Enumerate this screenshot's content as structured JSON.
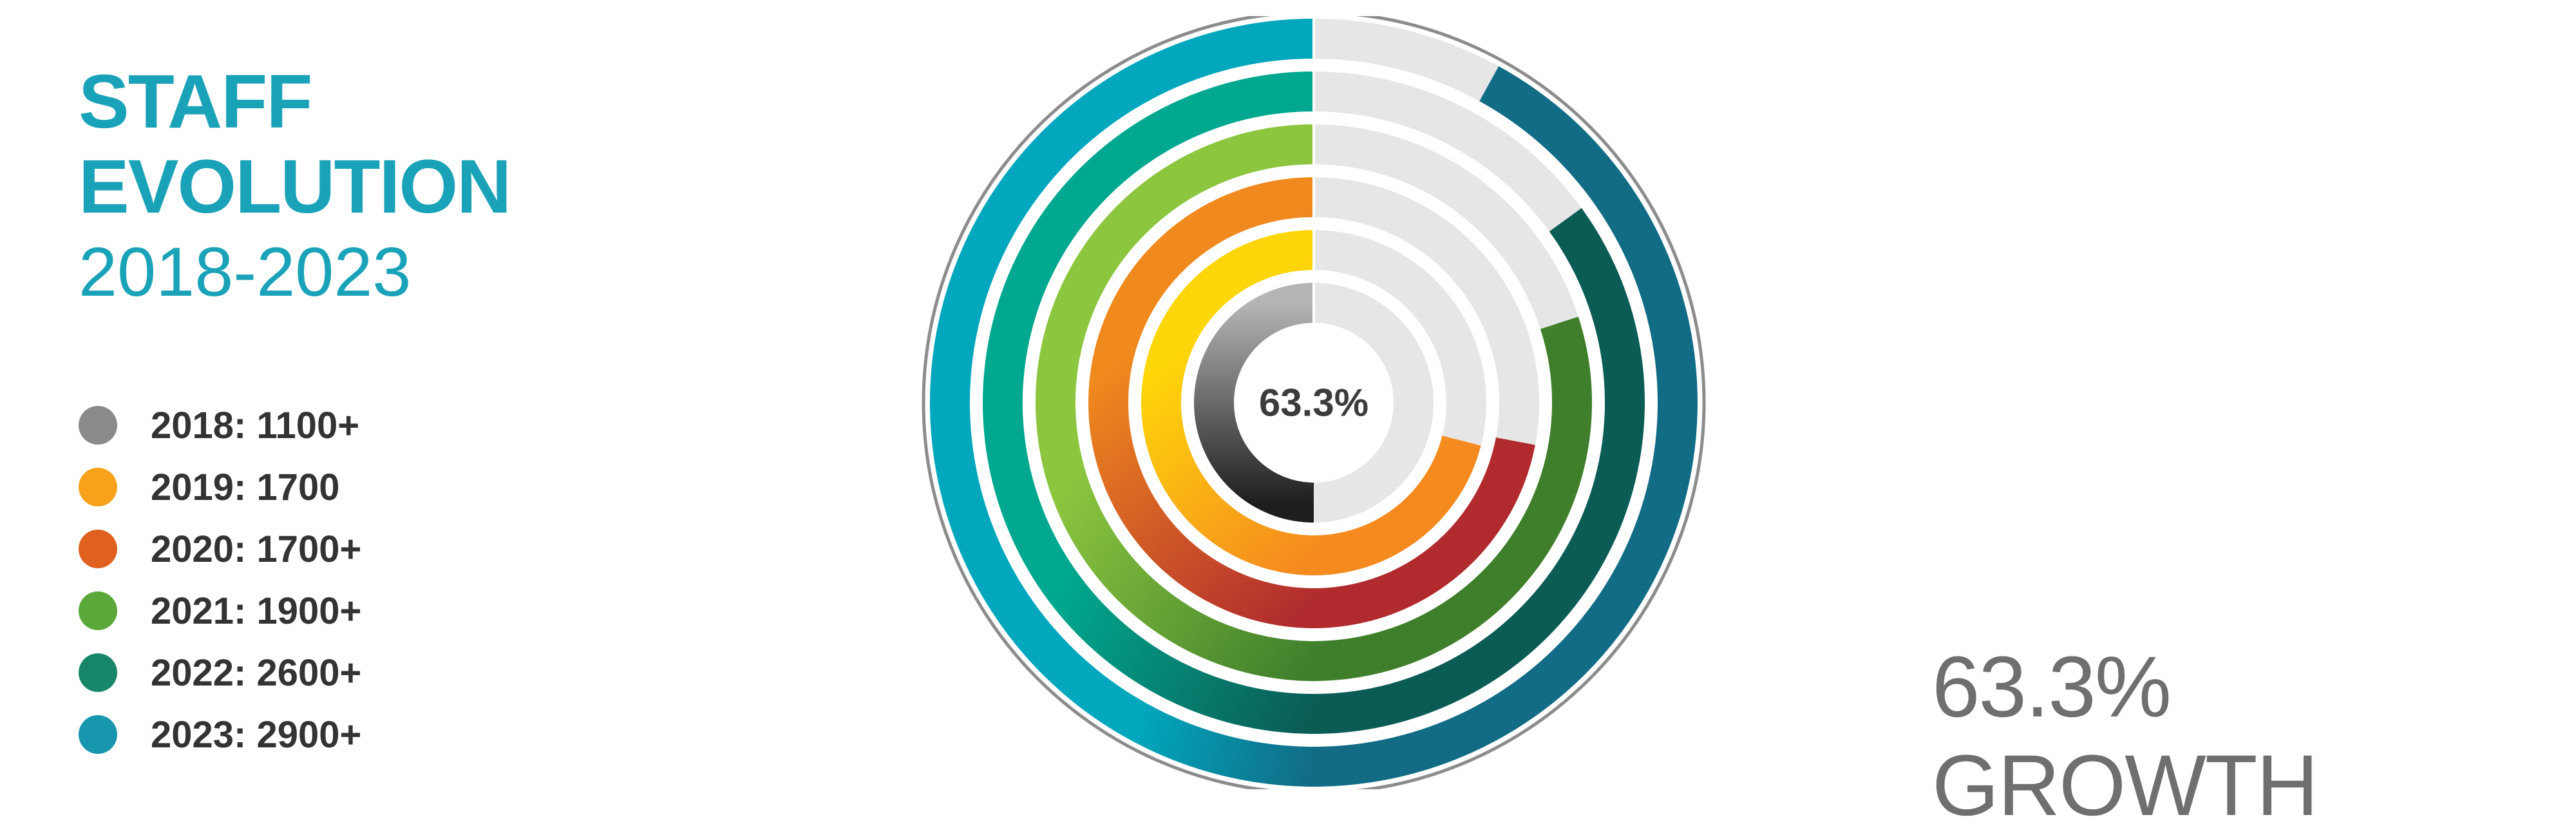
{
  "title": {
    "line1": "STAFF",
    "line2": "EVOLUTION",
    "range": "2018-2023"
  },
  "legend": [
    {
      "label": "2018: 1100+",
      "color": "#8a8a8a"
    },
    {
      "label": "2019: 1700",
      "color": "#f7a21a"
    },
    {
      "label": "2020: 1700+",
      "color": "#e0611f"
    },
    {
      "label": "2021: 1900+",
      "color": "#5aa83a"
    },
    {
      "label": "2022: 2600+",
      "color": "#17866a"
    },
    {
      "label": "2023: 2900+",
      "color": "#1796ad"
    }
  ],
  "center_label": "63.3%",
  "growth_label": "63.3% GROWTH",
  "colors": {
    "accent": "#1aa3b8",
    "track": "#e6e6e6",
    "outline": "#8c8c8c"
  },
  "chart_data": {
    "type": "radial-bar",
    "title": "STAFF EVOLUTION 2018-2023",
    "series": [
      {
        "year": "2018",
        "label": "2018: 1100+",
        "fraction": 0.5,
        "start_color": "#b5b5b5",
        "end_color": "#1e1e1e"
      },
      {
        "year": "2019",
        "label": "2019: 1700",
        "fraction": 0.71,
        "start_color": "#ffd60a",
        "end_color": "#f58a1f"
      },
      {
        "year": "2020",
        "label": "2020: 1700+",
        "fraction": 0.72,
        "start_color": "#f08a1e",
        "end_color": "#b02a2e"
      },
      {
        "year": "2021",
        "label": "2021: 1900+",
        "fraction": 0.8,
        "start_color": "#8cc63f",
        "end_color": "#3f7f2c"
      },
      {
        "year": "2022",
        "label": "2022: 2600+",
        "fraction": 0.85,
        "start_color": "#00a88f",
        "end_color": "#0b5c55"
      },
      {
        "year": "2023",
        "label": "2023: 2900+",
        "fraction": 0.92,
        "start_color": "#00a7bd",
        "end_color": "#126c86"
      }
    ],
    "center_value": "63.3%",
    "annotation": "63.3% GROWTH"
  }
}
